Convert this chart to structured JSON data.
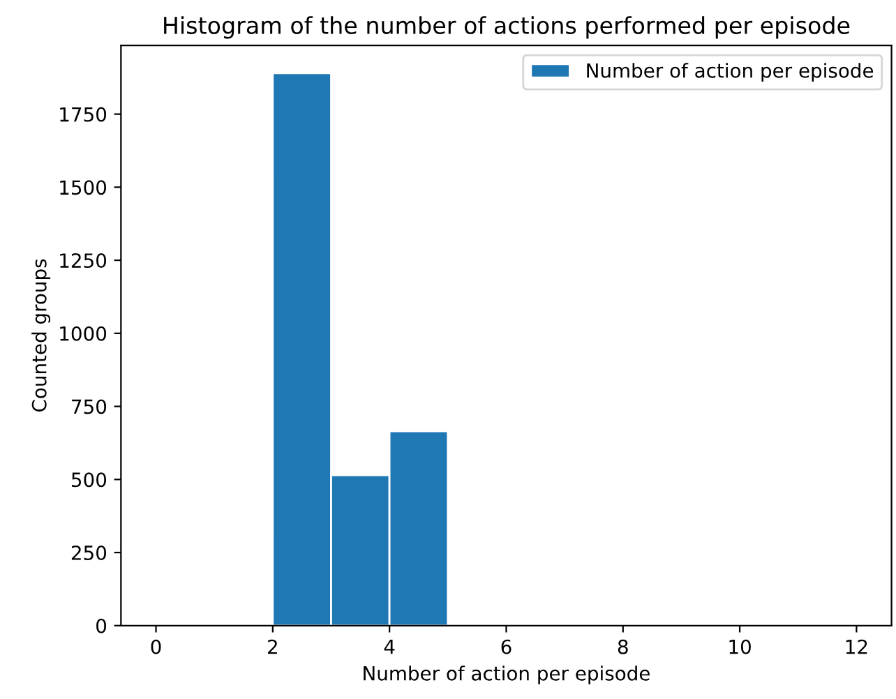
{
  "chart_data": {
    "type": "histogram",
    "title": "Histogram of the number of actions performed per episode",
    "xlabel": "Number of action per episode",
    "ylabel": "Counted groups",
    "bins": [
      2,
      3,
      4,
      5
    ],
    "series": [
      {
        "name": "Number of action per episode",
        "color": "#1f77b4",
        "values": [
          1890,
          515,
          665
        ]
      }
    ],
    "xlim": [
      -0.6,
      12.6
    ],
    "xticks": [
      0,
      2,
      4,
      6,
      8,
      10,
      12
    ],
    "ylim": [
      0,
      1985
    ],
    "yticks": [
      0,
      250,
      500,
      750,
      1000,
      1250,
      1500,
      1750
    ],
    "grid": false,
    "legend": "top right"
  }
}
